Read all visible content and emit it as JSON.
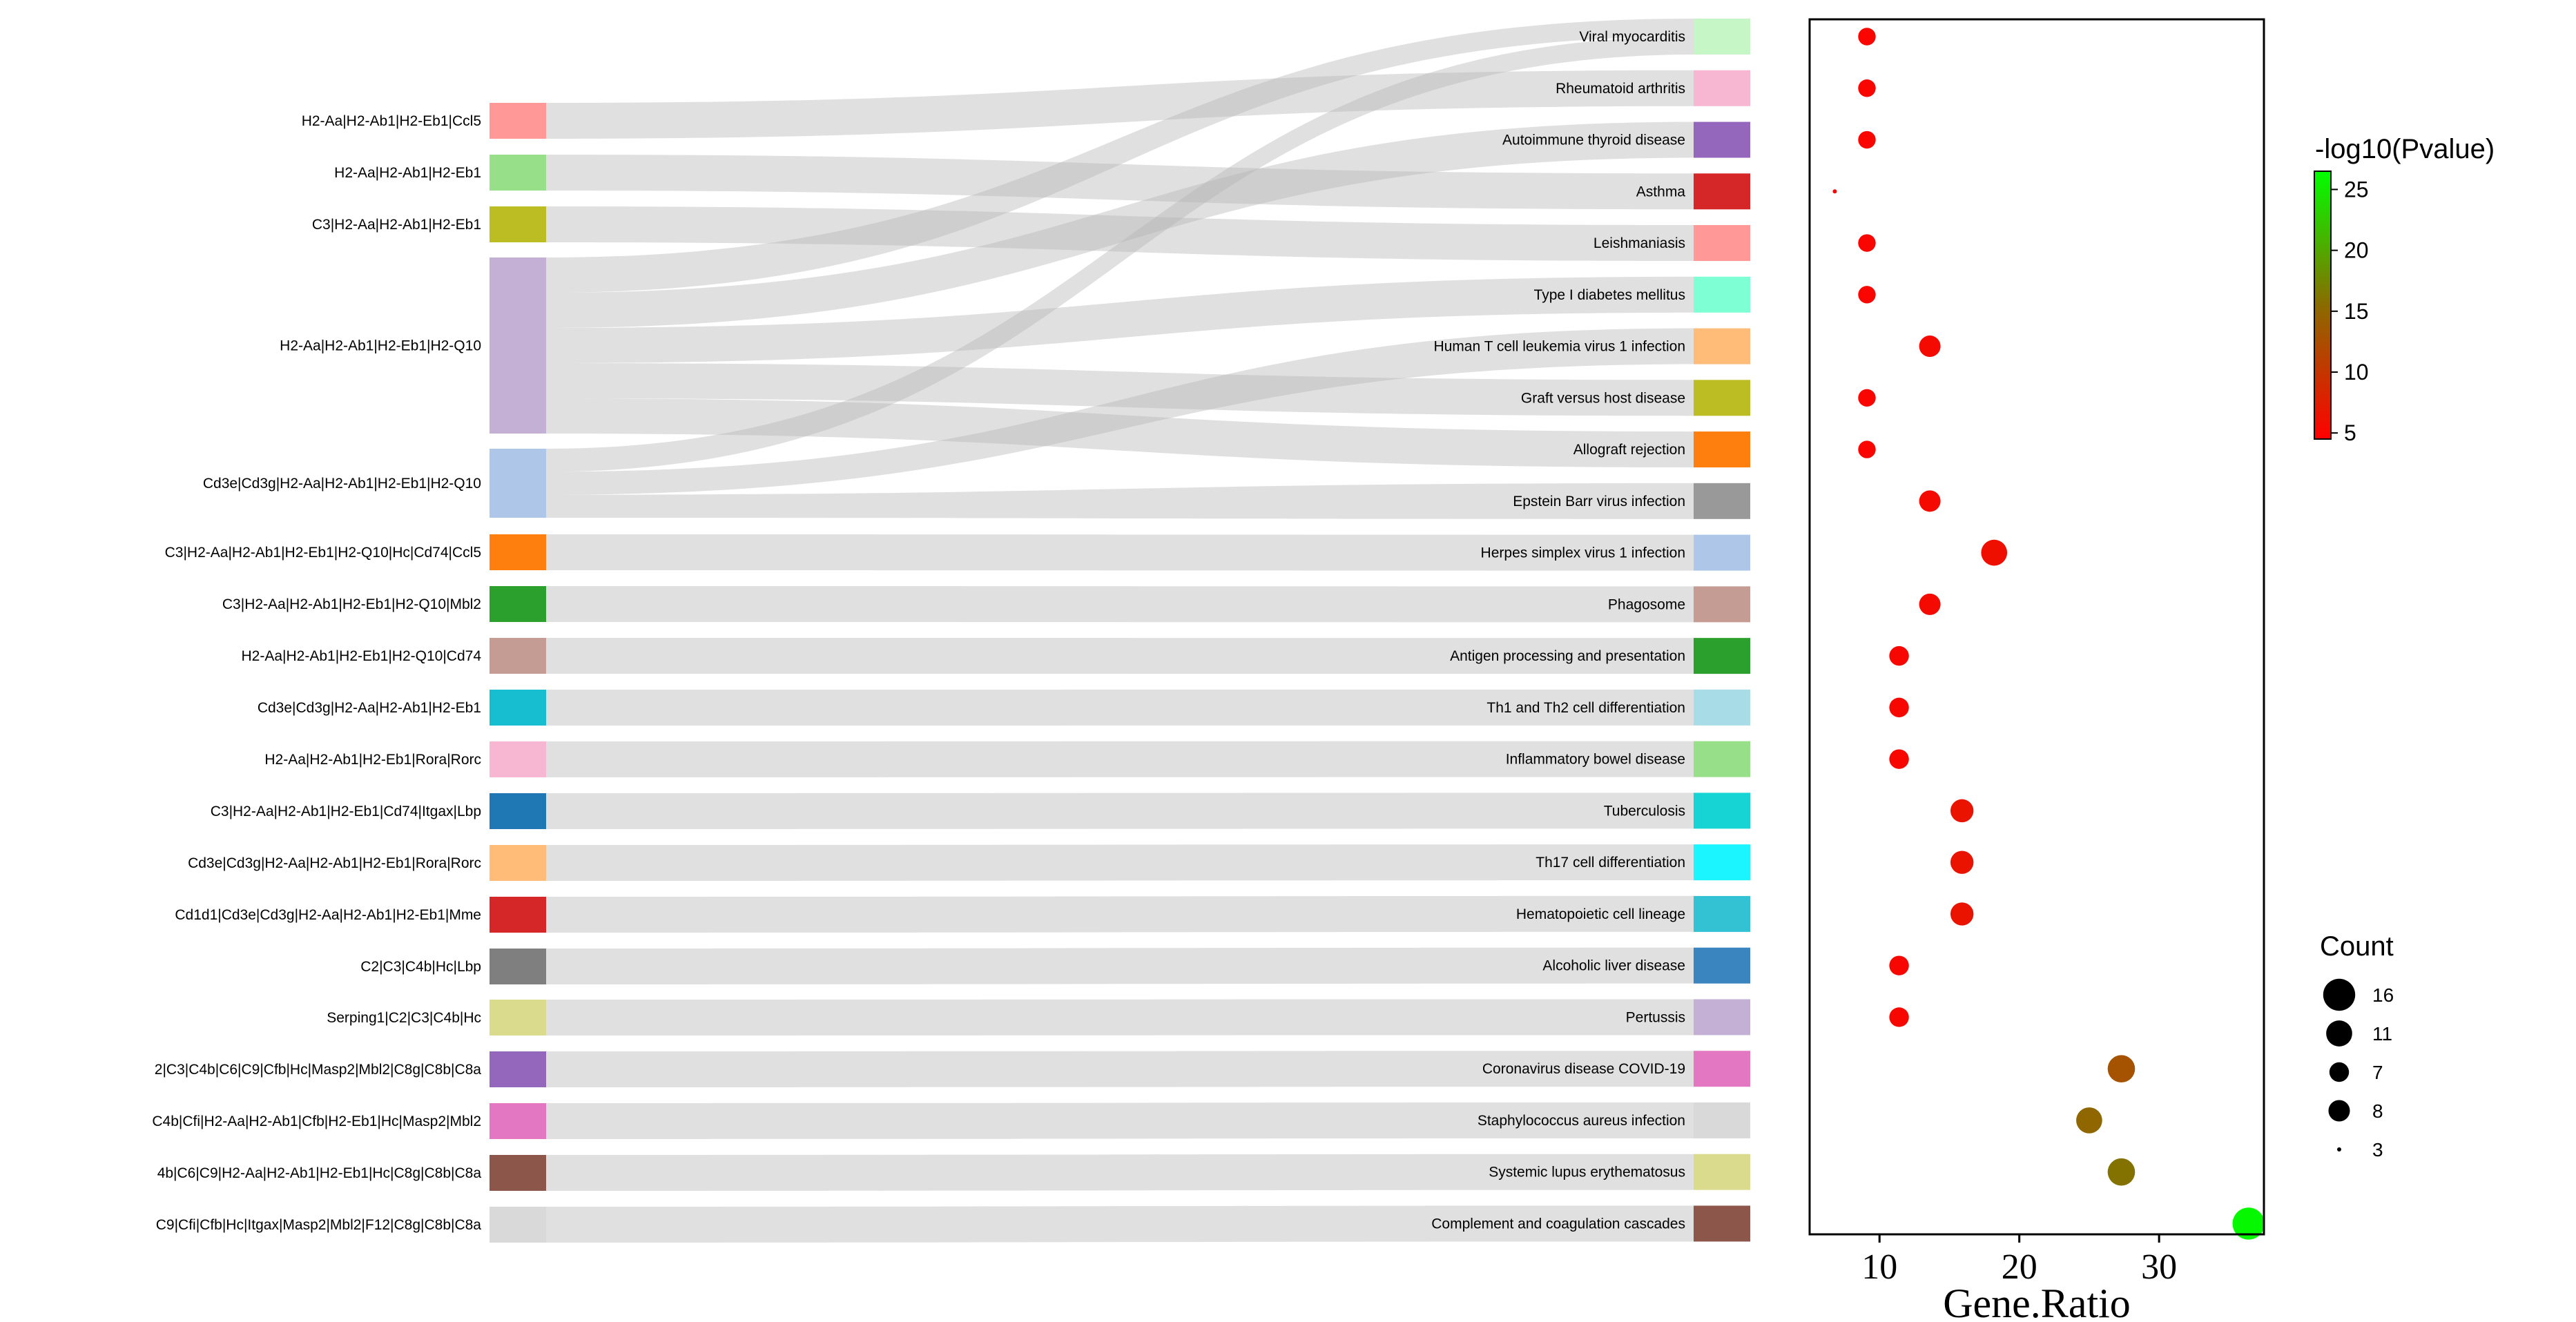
{
  "chart_data": {
    "type": "sankey-dotplot",
    "gene_sets": [
      {
        "label": "H2-Aa|H2-Ab1|H2-Eb1|Ccl5",
        "color": "#ff9896"
      },
      {
        "label": "H2-Aa|H2-Ab1|H2-Eb1",
        "color": "#98df8a"
      },
      {
        "label": "C3|H2-Aa|H2-Ab1|H2-Eb1",
        "color": "#bcbd22"
      },
      {
        "label": "H2-Aa|H2-Ab1|H2-Eb1|H2-Q10",
        "color": "#c5b0d5"
      },
      {
        "label": "Cd3e|Cd3g|H2-Aa|H2-Ab1|H2-Eb1|H2-Q10",
        "color": "#aec7e8"
      },
      {
        "label": "C3|H2-Aa|H2-Ab1|H2-Eb1|H2-Q10|Hc|Cd74|Ccl5",
        "color": "#ff7f0e"
      },
      {
        "label": "C3|H2-Aa|H2-Ab1|H2-Eb1|H2-Q10|Mbl2",
        "color": "#2ca02c"
      },
      {
        "label": "H2-Aa|H2-Ab1|H2-Eb1|H2-Q10|Cd74",
        "color": "#c49c94"
      },
      {
        "label": "Cd3e|Cd3g|H2-Aa|H2-Ab1|H2-Eb1",
        "color": "#17becf"
      },
      {
        "label": "H2-Aa|H2-Ab1|H2-Eb1|Rora|Rorc",
        "color": "#f7b6d2"
      },
      {
        "label": "C3|H2-Aa|H2-Ab1|H2-Eb1|Cd74|Itgax|Lbp",
        "color": "#1f77b4"
      },
      {
        "label": "Cd3e|Cd3g|H2-Aa|H2-Ab1|H2-Eb1|Rora|Rorc",
        "color": "#ffbb78"
      },
      {
        "label": "Cd1d1|Cd3e|Cd3g|H2-Aa|H2-Ab1|H2-Eb1|Mme",
        "color": "#d62728"
      },
      {
        "label": "C2|C3|C4b|Hc|Lbp",
        "color": "#7f7f7f"
      },
      {
        "label": "Serping1|C2|C3|C4b|Hc",
        "color": "#dbdb8d"
      },
      {
        "label": "2|C3|C4b|C6|C9|Cfb|Hc|Masp2|Mbl2|C8g|C8b|C8a",
        "color": "#9467bd"
      },
      {
        "label": "C4b|Cfi|H2-Aa|H2-Ab1|Cfb|H2-Eb1|Hc|Masp2|Mbl2",
        "color": "#e377c2"
      },
      {
        "label": "4b|C6|C9|H2-Aa|H2-Ab1|H2-Eb1|Hc|C8g|C8b|C8a",
        "color": "#8c564b"
      },
      {
        "label": "C9|Cfi|Cfb|Hc|Itgax|Masp2|Mbl2|F12|C8g|C8b|C8a",
        "color": "#d9d9d9"
      }
    ],
    "pathways": [
      {
        "label": "Viral myocarditis",
        "color": "#c6f5c6",
        "gene_ratio": 9.1,
        "count": 6,
        "neg_log10_p": 5
      },
      {
        "label": "Rheumatoid arthritis",
        "color": "#f7b6d2",
        "gene_ratio": 9.1,
        "count": 6,
        "neg_log10_p": 5
      },
      {
        "label": "Autoimmune thyroid disease",
        "color": "#9467bd",
        "gene_ratio": 9.1,
        "count": 6,
        "neg_log10_p": 5
      },
      {
        "label": "Asthma",
        "color": "#d62728",
        "gene_ratio": 6.8,
        "count": 3,
        "neg_log10_p": 5
      },
      {
        "label": "Leishmaniasis",
        "color": "#ff9896",
        "gene_ratio": 9.1,
        "count": 6,
        "neg_log10_p": 5
      },
      {
        "label": "Type I diabetes mellitus",
        "color": "#7fffd4",
        "gene_ratio": 9.1,
        "count": 6,
        "neg_log10_p": 5
      },
      {
        "label": "Human T cell leukemia virus 1 infection",
        "color": "#ffbb78",
        "gene_ratio": 13.6,
        "count": 8,
        "neg_log10_p": 5.5
      },
      {
        "label": "Graft versus host disease",
        "color": "#bcbd22",
        "gene_ratio": 9.1,
        "count": 6,
        "neg_log10_p": 5
      },
      {
        "label": "Allograft rejection",
        "color": "#ff7f0e",
        "gene_ratio": 9.1,
        "count": 6,
        "neg_log10_p": 5
      },
      {
        "label": "Epstein Barr virus infection",
        "color": "#999999",
        "gene_ratio": 13.6,
        "count": 8,
        "neg_log10_p": 5.5
      },
      {
        "label": "Herpes simplex virus 1 infection",
        "color": "#aec7e8",
        "gene_ratio": 18.2,
        "count": 11,
        "neg_log10_p": 6
      },
      {
        "label": "Phagosome",
        "color": "#c49c94",
        "gene_ratio": 13.6,
        "count": 8,
        "neg_log10_p": 5.5
      },
      {
        "label": "Antigen processing and presentation",
        "color": "#2ca02c",
        "gene_ratio": 11.4,
        "count": 7,
        "neg_log10_p": 5.2
      },
      {
        "label": "Th1 and Th2 cell differentiation",
        "color": "#a8dde8",
        "gene_ratio": 11.4,
        "count": 7,
        "neg_log10_p": 5.2
      },
      {
        "label": "Inflammatory bowel disease",
        "color": "#98df8a",
        "gene_ratio": 11.4,
        "count": 7,
        "neg_log10_p": 5.2
      },
      {
        "label": "Tuberculosis",
        "color": "#17d4d4",
        "gene_ratio": 15.9,
        "count": 9,
        "neg_log10_p": 6.5
      },
      {
        "label": "Th17 cell differentiation",
        "color": "#1af5ff",
        "gene_ratio": 15.9,
        "count": 9,
        "neg_log10_p": 6.5
      },
      {
        "label": "Hematopoietic cell lineage",
        "color": "#33c1d4",
        "gene_ratio": 15.9,
        "count": 9,
        "neg_log10_p": 6.5
      },
      {
        "label": "Alcoholic liver disease",
        "color": "#3a84c0",
        "gene_ratio": 11.4,
        "count": 7,
        "neg_log10_p": 5.2
      },
      {
        "label": "Pertussis",
        "color": "#c5b0d5",
        "gene_ratio": 11.4,
        "count": 7,
        "neg_log10_p": 5.2
      },
      {
        "label": "Coronavirus disease  COVID-19",
        "color": "#e377c2",
        "gene_ratio": 27.3,
        "count": 12,
        "neg_log10_p": 13
      },
      {
        "label": "Staphylococcus aureus infection",
        "color": "#d9d9d9",
        "gene_ratio": 25.0,
        "count": 11,
        "neg_log10_p": 15
      },
      {
        "label": "Systemic lupus erythematosus",
        "color": "#dbdb8d",
        "gene_ratio": 27.3,
        "count": 12,
        "neg_log10_p": 16
      },
      {
        "label": "Complement and coagulation cascades",
        "color": "#8c564b",
        "gene_ratio": 36.4,
        "count": 16,
        "neg_log10_p": 26
      }
    ],
    "links": [
      {
        "source": 0,
        "target": 1
      },
      {
        "source": 1,
        "target": 3
      },
      {
        "source": 2,
        "target": 4
      },
      {
        "source": 3,
        "target": 0
      },
      {
        "source": 3,
        "target": 2
      },
      {
        "source": 3,
        "target": 5
      },
      {
        "source": 3,
        "target": 7
      },
      {
        "source": 3,
        "target": 8
      },
      {
        "source": 4,
        "target": 0
      },
      {
        "source": 4,
        "target": 6
      },
      {
        "source": 4,
        "target": 9
      },
      {
        "source": 5,
        "target": 10
      },
      {
        "source": 6,
        "target": 11
      },
      {
        "source": 7,
        "target": 12
      },
      {
        "source": 8,
        "target": 13
      },
      {
        "source": 9,
        "target": 14
      },
      {
        "source": 10,
        "target": 15
      },
      {
        "source": 11,
        "target": 16
      },
      {
        "source": 12,
        "target": 17
      },
      {
        "source": 13,
        "target": 18
      },
      {
        "source": 14,
        "target": 19
      },
      {
        "source": 15,
        "target": 20
      },
      {
        "source": 16,
        "target": 21
      },
      {
        "source": 17,
        "target": 22
      },
      {
        "source": 18,
        "target": 23
      }
    ],
    "xlabel": "Gene.Ratio",
    "xticks": [
      10,
      20,
      30
    ],
    "xlim": [
      5,
      37.5
    ],
    "colorbar": {
      "title": "-log10(Pvalue)",
      "ticks": [
        5,
        10,
        15,
        20,
        25
      ],
      "range": [
        4.5,
        26.5
      ],
      "colors": [
        "#ff0000",
        "#8a6b00",
        "#00ff00"
      ]
    },
    "size_legend": {
      "title": "Count",
      "entries": [
        16,
        11,
        7,
        8,
        3
      ]
    }
  }
}
